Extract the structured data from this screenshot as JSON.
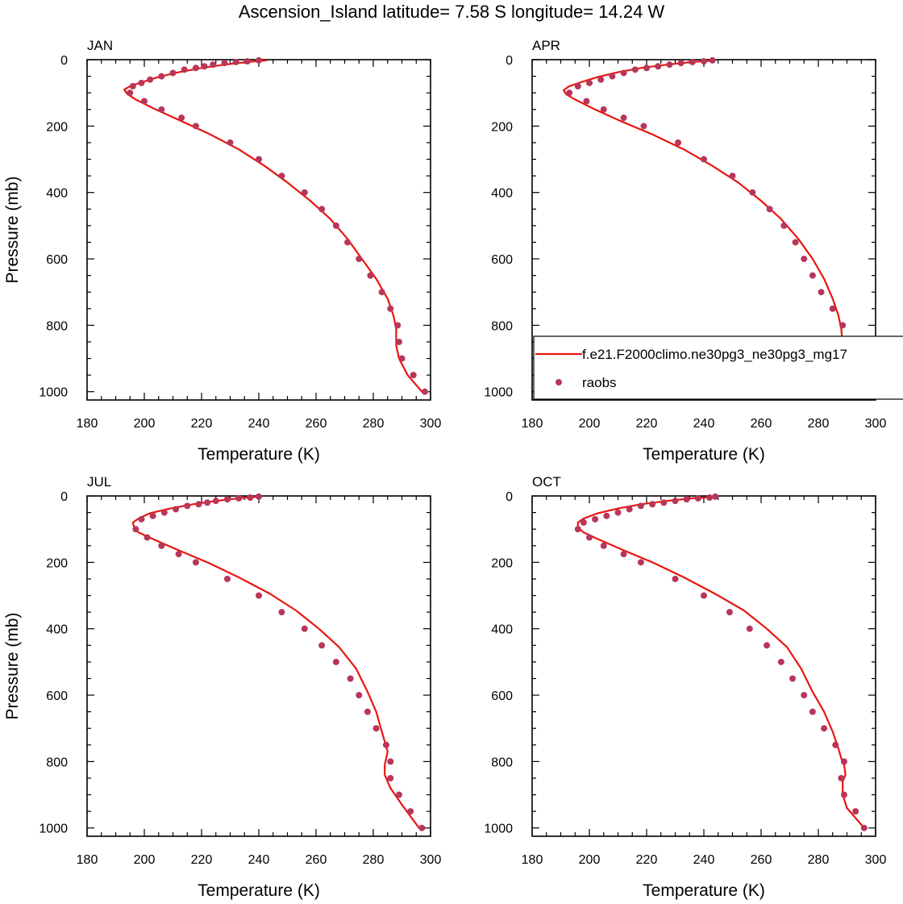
{
  "title": "Ascension_Island  latitude= 7.58 S longitude= 14.24 W",
  "colors": {
    "model_line": "#e8160f",
    "obs_marker": "#b8365a",
    "axis": "#000000"
  },
  "legend": {
    "panel": 1,
    "entries": [
      {
        "label": "f.e21.F2000climo.ne30pg3_ne30pg3_mg17",
        "symbol": "line"
      },
      {
        "label": "raobs",
        "symbol": "marker"
      }
    ]
  },
  "chart_data": [
    {
      "type": "line",
      "title": "JAN",
      "xlabel": "Temperature (K)",
      "ylabel": "Pressure (mb)",
      "xlim": [
        180,
        300
      ],
      "ylim": [
        1025,
        0
      ],
      "xticks": [
        180,
        200,
        220,
        240,
        260,
        280,
        300
      ],
      "yticks": [
        0,
        200,
        400,
        600,
        800,
        1000
      ],
      "series": [
        {
          "name": "f.e21.F2000climo.ne30pg3_ne30pg3_mg17",
          "kind": "line",
          "x": [
            243,
            236,
            228,
            220,
            212,
            205,
            199,
            195,
            193,
            194,
            197,
            204,
            213,
            223,
            233,
            242,
            250,
            258,
            265,
            271,
            276,
            281,
            285,
            287,
            288,
            288,
            289,
            292,
            297
          ],
          "y": [
            2,
            7,
            15,
            25,
            38,
            52,
            68,
            80,
            90,
            103,
            120,
            150,
            185,
            225,
            270,
            320,
            370,
            425,
            480,
            540,
            600,
            660,
            720,
            770,
            810,
            860,
            900,
            950,
            1000
          ]
        },
        {
          "name": "raobs",
          "kind": "scatter",
          "x": [
            240,
            236,
            232,
            228,
            224,
            221,
            218,
            214,
            210,
            206,
            202,
            199,
            196,
            195,
            200,
            206,
            213,
            218,
            230,
            240,
            248,
            256,
            262,
            267,
            271,
            275,
            279,
            283,
            286,
            288.5,
            289,
            290,
            294,
            298
          ],
          "y": [
            2,
            5,
            7,
            10,
            15,
            20,
            25,
            30,
            40,
            50,
            60,
            70,
            80,
            100,
            125,
            150,
            175,
            200,
            250,
            300,
            350,
            400,
            450,
            500,
            550,
            600,
            650,
            700,
            750,
            800,
            850,
            900,
            950,
            1000
          ]
        }
      ]
    },
    {
      "type": "line",
      "title": "APR",
      "xlabel": "Temperature (K)",
      "ylabel": "",
      "xlim": [
        180,
        300
      ],
      "ylim": [
        1025,
        0
      ],
      "xticks": [
        180,
        200,
        220,
        240,
        260,
        280,
        300
      ],
      "yticks": [
        0,
        200,
        400,
        600,
        800,
        1000
      ],
      "series": [
        {
          "name": "f.e21.F2000climo.ne30pg3_ne30pg3_mg17",
          "kind": "line",
          "x": [
            244,
            236,
            227,
            218,
            210,
            203,
            197,
            193,
            191,
            192,
            195,
            202,
            211,
            222,
            233,
            243,
            252,
            260,
            267,
            273,
            278,
            282,
            285,
            287,
            288,
            288.5,
            289,
            292,
            299
          ],
          "y": [
            2,
            7,
            15,
            25,
            38,
            52,
            68,
            80,
            92,
            105,
            120,
            150,
            185,
            225,
            270,
            320,
            370,
            425,
            480,
            540,
            600,
            660,
            720,
            770,
            810,
            860,
            900,
            950,
            1000
          ]
        },
        {
          "name": "raobs",
          "kind": "scatter",
          "x": [
            243,
            240,
            236,
            232,
            228,
            224,
            220,
            216,
            212,
            208,
            204,
            200,
            196,
            193,
            199,
            205,
            212,
            219,
            231,
            240,
            250,
            257,
            263,
            268,
            272,
            275,
            278,
            281,
            285,
            288.5,
            289.5,
            292,
            295,
            299
          ],
          "y": [
            2,
            5,
            7,
            10,
            15,
            20,
            25,
            30,
            40,
            50,
            60,
            70,
            80,
            100,
            125,
            150,
            175,
            200,
            250,
            300,
            350,
            400,
            450,
            500,
            550,
            600,
            650,
            700,
            750,
            800,
            850,
            900,
            950,
            1000
          ]
        }
      ]
    },
    {
      "type": "line",
      "title": "JUL",
      "xlabel": "Temperature (K)",
      "ylabel": "Pressure (mb)",
      "xlim": [
        180,
        300
      ],
      "ylim": [
        1025,
        0
      ],
      "xticks": [
        180,
        200,
        220,
        240,
        260,
        280,
        300
      ],
      "yticks": [
        0,
        200,
        400,
        600,
        800,
        1000
      ],
      "series": [
        {
          "name": "f.e21.F2000climo.ne30pg3_ne30pg3_mg17",
          "kind": "line",
          "x": [
            240,
            233,
            225,
            217,
            209,
            202,
            198,
            196,
            196.5,
            198,
            203,
            211,
            222,
            233,
            244,
            253,
            261,
            268,
            274,
            278,
            281,
            283,
            285,
            284,
            284,
            286,
            290,
            296
          ],
          "y": [
            2,
            7,
            15,
            25,
            38,
            52,
            68,
            80,
            95,
            110,
            130,
            160,
            200,
            245,
            295,
            345,
            400,
            455,
            520,
            590,
            650,
            710,
            770,
            810,
            840,
            880,
            930,
            1000
          ]
        },
        {
          "name": "raobs",
          "kind": "scatter",
          "x": [
            240,
            237,
            233,
            229,
            225,
            222,
            219,
            215,
            211,
            207,
            203,
            199,
            197,
            201,
            206,
            212,
            218,
            229,
            240,
            248,
            256,
            262,
            267,
            272,
            275,
            278,
            281,
            284.5,
            286,
            286,
            289,
            293,
            297
          ],
          "y": [
            2,
            5,
            7,
            10,
            15,
            20,
            25,
            30,
            40,
            50,
            60,
            70,
            100,
            125,
            150,
            175,
            200,
            250,
            300,
            350,
            400,
            450,
            500,
            550,
            600,
            650,
            700,
            750,
            800,
            850,
            900,
            950,
            1000
          ]
        }
      ]
    },
    {
      "type": "line",
      "title": "OCT",
      "xlabel": "Temperature (K)",
      "ylabel": "",
      "xlim": [
        180,
        300
      ],
      "ylim": [
        1025,
        0
      ],
      "xticks": [
        180,
        200,
        220,
        240,
        260,
        280,
        300
      ],
      "yticks": [
        0,
        200,
        400,
        600,
        800,
        1000
      ],
      "series": [
        {
          "name": "f.e21.F2000climo.ne30pg3_ne30pg3_mg17",
          "kind": "line",
          "x": [
            245,
            236,
            227,
            218,
            210,
            203,
            198,
            196,
            196,
            198,
            203,
            211,
            222,
            233,
            244,
            254,
            262,
            269,
            274,
            278,
            282,
            285,
            287,
            288,
            289,
            289.5,
            288.5,
            288.5,
            290,
            296
          ],
          "y": [
            2,
            7,
            15,
            25,
            38,
            52,
            68,
            80,
            95,
            110,
            130,
            160,
            200,
            245,
            295,
            345,
            400,
            455,
            520,
            590,
            650,
            710,
            760,
            790,
            810,
            840,
            860,
            900,
            940,
            1000
          ]
        },
        {
          "name": "raobs",
          "kind": "scatter",
          "x": [
            244,
            242,
            238,
            234,
            230,
            226,
            222,
            218,
            214,
            210,
            206,
            202,
            198,
            196,
            200,
            205,
            212,
            218,
            230,
            240,
            249,
            256,
            262,
            267,
            271,
            275,
            278,
            282,
            286,
            289,
            288,
            289,
            293,
            296
          ],
          "y": [
            2,
            5,
            7,
            10,
            15,
            20,
            25,
            30,
            40,
            50,
            60,
            70,
            80,
            100,
            125,
            150,
            175,
            200,
            250,
            300,
            350,
            400,
            450,
            500,
            550,
            600,
            650,
            700,
            750,
            800,
            850,
            900,
            950,
            1000
          ]
        }
      ]
    }
  ]
}
